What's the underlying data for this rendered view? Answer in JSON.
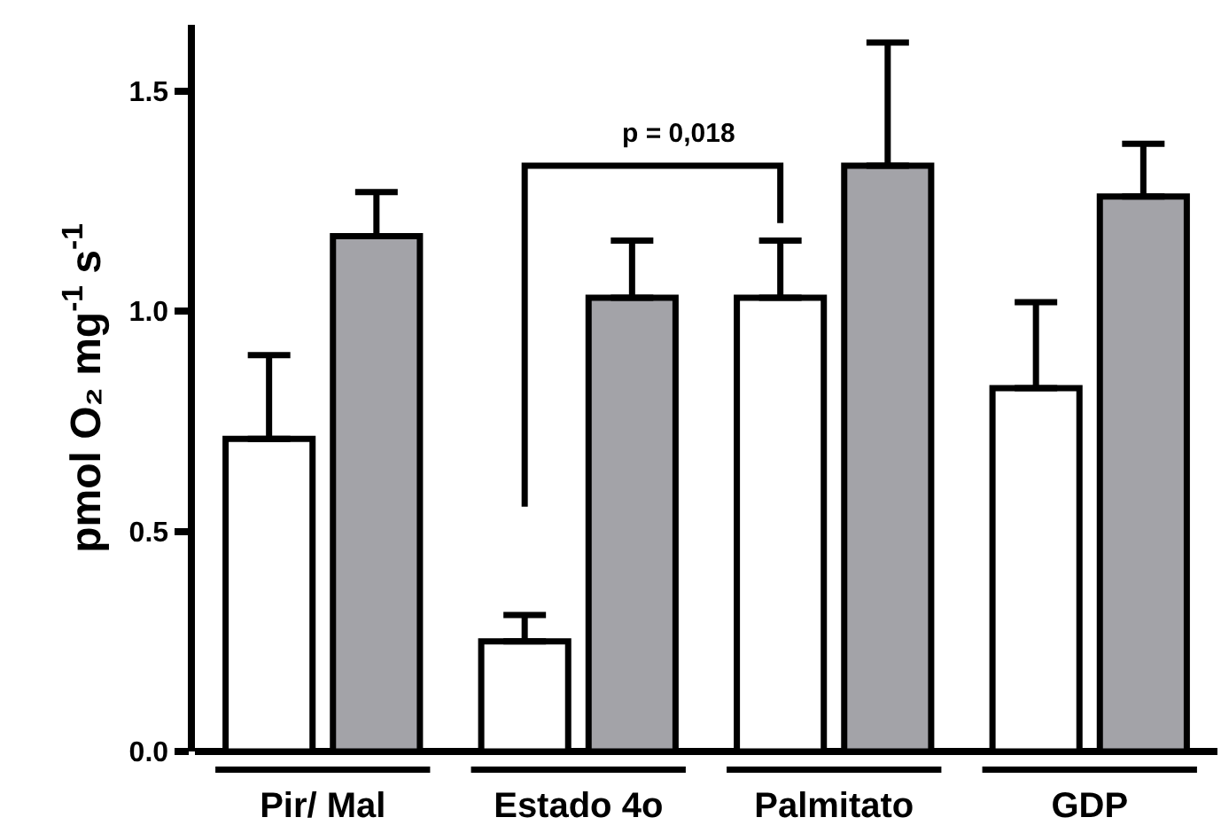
{
  "chart_data": {
    "type": "bar",
    "ylabel": "pmol O₂ mg$^{-1}$ s$^{-1}$",
    "categories": [
      "Pir/ Mal",
      "Estado 4o",
      "Palmitato",
      "GDP"
    ],
    "series": [
      {
        "color": "#ffffff",
        "values": [
          0.71,
          0.25,
          1.03,
          0.825
        ],
        "errors": [
          [
            0.71,
            0.9
          ],
          [
            0.25,
            0.31
          ],
          [
            1.03,
            1.16
          ],
          [
            0.825,
            1.02
          ]
        ]
      },
      {
        "color": "#a3a3a8",
        "values": [
          1.17,
          1.03,
          1.33,
          1.26
        ],
        "errors": [
          [
            1.17,
            1.27
          ],
          [
            1.03,
            1.16
          ],
          [
            1.33,
            1.61
          ],
          [
            1.26,
            1.38
          ]
        ]
      }
    ],
    "ylim": [
      0,
      1.65
    ],
    "yticks": [
      {
        "value": 0,
        "label": "0.0"
      },
      {
        "value": 0.5,
        "label": "0.5"
      },
      {
        "value": 1,
        "label": "1.0"
      },
      {
        "value": 1.5,
        "label": "1.5"
      }
    ],
    "annotations": [
      "p = 0,018"
    ],
    "grid": false
  }
}
